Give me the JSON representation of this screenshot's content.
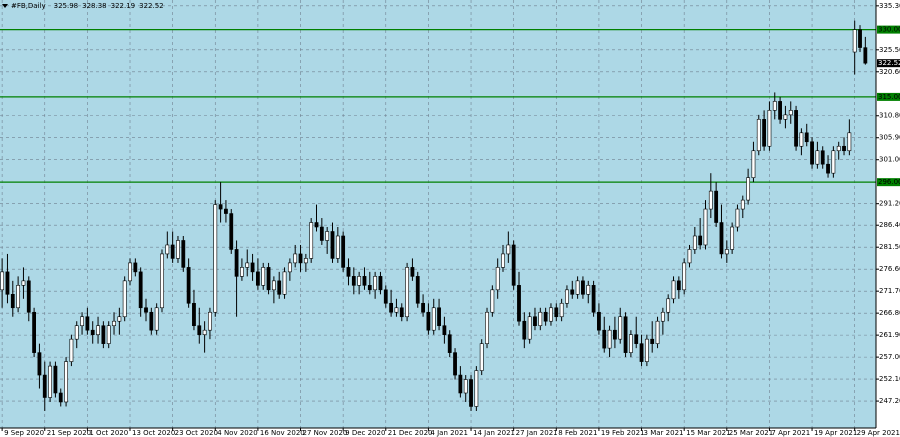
{
  "chart_data": {
    "type": "candlestick",
    "title": "#FB,Daily",
    "header_values": [
      325.98,
      328.38,
      322.19,
      322.52
    ],
    "ylim": [
      241.2,
      336.6
    ],
    "xlim": [
      -0.4,
      164
    ],
    "grid": true,
    "bull_color": "#ffffff",
    "bear_color": "#000000",
    "level_color": "#008000",
    "yticks": [
      {
        "value": 335.3,
        "label": "335.30"
      },
      {
        "value": 325.5,
        "label": "325.50"
      },
      {
        "value": 320.6,
        "label": "320.60"
      },
      {
        "value": 310.8,
        "label": "310.80"
      },
      {
        "value": 305.9,
        "label": "305.90"
      },
      {
        "value": 301,
        "label": "301.00"
      },
      {
        "value": 291.2,
        "label": "291.20"
      },
      {
        "value": 286.4,
        "label": "286.40"
      },
      {
        "value": 281.5,
        "label": "281.50"
      },
      {
        "value": 276.6,
        "label": "276.60"
      },
      {
        "value": 271.7,
        "label": "271.70"
      },
      {
        "value": 266.8,
        "label": "266.80"
      },
      {
        "value": 261.9,
        "label": "261.90"
      },
      {
        "value": 257,
        "label": "257.00"
      },
      {
        "value": 252.1,
        "label": "252.10"
      },
      {
        "value": 247.2,
        "label": "247.20"
      }
    ],
    "levels": [
      {
        "value": 330,
        "label": "330.00"
      },
      {
        "value": 315,
        "label": "315.00"
      },
      {
        "value": 296,
        "label": "296.00"
      }
    ],
    "xticks": [
      {
        "value": 0,
        "label": "9 Sep 2020"
      },
      {
        "value": 8,
        "label": "21 Sep 2020"
      },
      {
        "value": 16,
        "label": "1 Oct 2020"
      },
      {
        "value": 24,
        "label": "13 Oct 2020"
      },
      {
        "value": 32,
        "label": "23 Oct 2020"
      },
      {
        "value": 40,
        "label": "4 Nov 2020"
      },
      {
        "value": 48,
        "label": "16 Nov 2020"
      },
      {
        "value": 56,
        "label": "27 Nov 2020"
      },
      {
        "value": 64,
        "label": "9 Dec 2020"
      },
      {
        "value": 72,
        "label": "21 Dec 2020"
      },
      {
        "value": 80,
        "label": "4 Jan 2021"
      },
      {
        "value": 88,
        "label": "14 Jan 2021"
      },
      {
        "value": 96,
        "label": "27 Jan 2021"
      },
      {
        "value": 104,
        "label": "8 Feb 2021"
      },
      {
        "value": 112,
        "label": "19 Feb 2021"
      },
      {
        "value": 120,
        "label": "3 Mar 2021"
      },
      {
        "value": 128,
        "label": "15 Mar 2021"
      },
      {
        "value": 136,
        "label": "25 Mar 2021"
      },
      {
        "value": 144,
        "label": "7 Apr 2021"
      },
      {
        "value": 152,
        "label": "19 Apr 2021"
      },
      {
        "value": 160,
        "label": "29 Apr 2021"
      }
    ],
    "candles": [
      [
        272,
        279,
        268,
        276
      ],
      [
        276,
        280,
        269,
        271
      ],
      [
        271,
        274,
        266,
        268
      ],
      [
        268,
        275,
        267,
        273
      ],
      [
        273,
        277,
        270,
        274
      ],
      [
        274,
        275,
        265,
        267
      ],
      [
        267,
        268,
        257,
        258
      ],
      [
        258,
        260,
        250,
        253
      ],
      [
        253,
        256,
        245,
        248
      ],
      [
        248,
        256,
        247,
        255
      ],
      [
        255,
        256,
        248,
        249
      ],
      [
        249,
        250,
        246,
        247
      ],
      [
        247,
        257,
        246,
        256
      ],
      [
        256,
        262,
        255,
        261
      ],
      [
        261,
        265,
        259,
        264
      ],
      [
        264,
        267,
        262,
        266
      ],
      [
        266,
        268,
        262,
        263
      ],
      [
        263,
        265,
        260,
        262
      ],
      [
        262,
        266,
        260,
        264
      ],
      [
        264,
        265,
        259,
        260
      ],
      [
        260,
        265,
        259,
        264
      ],
      [
        264,
        267,
        262,
        265
      ],
      [
        265,
        268,
        262,
        266
      ],
      [
        266,
        275,
        265,
        274
      ],
      [
        274,
        279,
        273,
        278
      ],
      [
        278,
        279,
        275,
        276
      ],
      [
        276,
        277,
        266,
        268
      ],
      [
        268,
        270,
        265,
        267
      ],
      [
        267,
        268,
        262,
        263
      ],
      [
        263,
        269,
        262,
        268
      ],
      [
        268,
        281,
        267,
        280
      ],
      [
        280,
        285,
        279,
        282
      ],
      [
        282,
        285,
        278,
        279
      ],
      [
        279,
        284,
        278,
        283
      ],
      [
        283,
        284,
        276,
        277
      ],
      [
        277,
        279,
        268,
        269
      ],
      [
        269,
        272,
        263,
        264
      ],
      [
        264,
        268,
        260,
        262
      ],
      [
        262,
        265,
        258,
        263
      ],
      [
        263,
        268,
        261,
        267
      ],
      [
        267,
        292,
        266,
        291
      ],
      [
        291,
        296,
        287,
        290
      ],
      [
        290,
        292,
        287,
        289
      ],
      [
        289,
        290,
        280,
        281
      ],
      [
        281,
        283,
        266,
        275
      ],
      [
        275,
        279,
        274,
        277
      ],
      [
        277,
        281,
        275,
        278
      ],
      [
        278,
        280,
        274,
        276
      ],
      [
        276,
        279,
        272,
        273
      ],
      [
        273,
        278,
        272,
        277
      ],
      [
        277,
        278,
        271,
        272
      ],
      [
        272,
        275,
        269,
        274
      ],
      [
        274,
        276,
        270,
        271
      ],
      [
        271,
        277,
        270,
        276
      ],
      [
        276,
        279,
        274,
        278
      ],
      [
        278,
        282,
        277,
        280
      ],
      [
        280,
        282,
        276,
        278
      ],
      [
        278,
        280,
        276,
        279
      ],
      [
        279,
        288,
        278,
        287
      ],
      [
        287,
        291,
        285,
        286
      ],
      [
        286,
        288,
        282,
        283
      ],
      [
        283,
        286,
        280,
        285
      ],
      [
        285,
        287,
        278,
        279
      ],
      [
        279,
        286,
        278,
        284
      ],
      [
        284,
        285,
        276,
        277
      ],
      [
        277,
        279,
        273,
        275
      ],
      [
        275,
        277,
        271,
        273
      ],
      [
        273,
        276,
        271,
        275
      ],
      [
        275,
        277,
        272,
        273
      ],
      [
        273,
        276,
        271,
        272
      ],
      [
        272,
        276,
        270,
        275
      ],
      [
        275,
        276,
        271,
        272
      ],
      [
        272,
        273,
        268,
        269
      ],
      [
        269,
        272,
        266,
        267
      ],
      [
        267,
        270,
        266,
        268
      ],
      [
        268,
        269,
        265,
        266
      ],
      [
        266,
        278,
        265,
        277
      ],
      [
        277,
        279,
        274,
        275
      ],
      [
        275,
        276,
        268,
        269
      ],
      [
        269,
        271,
        266,
        267
      ],
      [
        267,
        269,
        262,
        263
      ],
      [
        263,
        270,
        262,
        268
      ],
      [
        268,
        270,
        263,
        264
      ],
      [
        264,
        266,
        260,
        262
      ],
      [
        262,
        263,
        257,
        258
      ],
      [
        258,
        259,
        252,
        253
      ],
      [
        253,
        255,
        248,
        249
      ],
      [
        249,
        253,
        247,
        252
      ],
      [
        252,
        253,
        245,
        246
      ],
      [
        246,
        255,
        245,
        254
      ],
      [
        254,
        261,
        253,
        260
      ],
      [
        260,
        268,
        259,
        267
      ],
      [
        267,
        273,
        266,
        272
      ],
      [
        272,
        279,
        270,
        277
      ],
      [
        277,
        282,
        276,
        280
      ],
      [
        280,
        285,
        278,
        282
      ],
      [
        282,
        283,
        272,
        273
      ],
      [
        273,
        276,
        264,
        265
      ],
      [
        265,
        267,
        259,
        261
      ],
      [
        261,
        267,
        260,
        266
      ],
      [
        266,
        268,
        263,
        264
      ],
      [
        264,
        268,
        263,
        267
      ],
      [
        267,
        268,
        264,
        265
      ],
      [
        265,
        269,
        264,
        268
      ],
      [
        268,
        269,
        265,
        266
      ],
      [
        266,
        270,
        265,
        269
      ],
      [
        269,
        273,
        268,
        272
      ],
      [
        272,
        274,
        270,
        271
      ],
      [
        271,
        275,
        270,
        274
      ],
      [
        274,
        275,
        270,
        271
      ],
      [
        271,
        274,
        269,
        273
      ],
      [
        273,
        274,
        266,
        267
      ],
      [
        267,
        269,
        262,
        263
      ],
      [
        263,
        266,
        258,
        259
      ],
      [
        259,
        264,
        257,
        263
      ],
      [
        263,
        266,
        259,
        261
      ],
      [
        261,
        268,
        260,
        266
      ],
      [
        266,
        267,
        257,
        258
      ],
      [
        258,
        263,
        257,
        262
      ],
      [
        262,
        266,
        259,
        260
      ],
      [
        260,
        262,
        255,
        256
      ],
      [
        256,
        262,
        255,
        261
      ],
      [
        261,
        265,
        258,
        260
      ],
      [
        260,
        266,
        259,
        265
      ],
      [
        265,
        268,
        262,
        267
      ],
      [
        267,
        271,
        265,
        270
      ],
      [
        270,
        275,
        269,
        274
      ],
      [
        274,
        275,
        270,
        272
      ],
      [
        272,
        279,
        271,
        278
      ],
      [
        278,
        282,
        277,
        281
      ],
      [
        281,
        286,
        280,
        284
      ],
      [
        284,
        288,
        281,
        282
      ],
      [
        282,
        292,
        281,
        290
      ],
      [
        290,
        298,
        288,
        294
      ],
      [
        294,
        296,
        286,
        287
      ],
      [
        287,
        291,
        279,
        280
      ],
      [
        280,
        283,
        278,
        281
      ],
      [
        281,
        287,
        280,
        286
      ],
      [
        286,
        291,
        285,
        290
      ],
      [
        290,
        293,
        288,
        292
      ],
      [
        292,
        299,
        291,
        297
      ],
      [
        297,
        305,
        296,
        303
      ],
      [
        303,
        311,
        302,
        310
      ],
      [
        310,
        312,
        303,
        304
      ],
      [
        304,
        314,
        303,
        312
      ],
      [
        312,
        316,
        310,
        314
      ],
      [
        314,
        315,
        309,
        310
      ],
      [
        310,
        313,
        308,
        311
      ],
      [
        311,
        314,
        309,
        312
      ],
      [
        312,
        313,
        303,
        304
      ],
      [
        304,
        308,
        302,
        307
      ],
      [
        307,
        309,
        304,
        305
      ],
      [
        305,
        306,
        299,
        300
      ],
      [
        300,
        305,
        299,
        303
      ],
      [
        303,
        304,
        299,
        300
      ],
      [
        300,
        302,
        297,
        298
      ],
      [
        298,
        304,
        297,
        303
      ],
      [
        303,
        305,
        301,
        304
      ],
      [
        304,
        306,
        302,
        303
      ],
      [
        303,
        310,
        302,
        307
      ],
      [
        325,
        332,
        320,
        330
      ],
      [
        330,
        331,
        325,
        326
      ],
      [
        325.98,
        328.38,
        322.19,
        322.52
      ]
    ]
  }
}
